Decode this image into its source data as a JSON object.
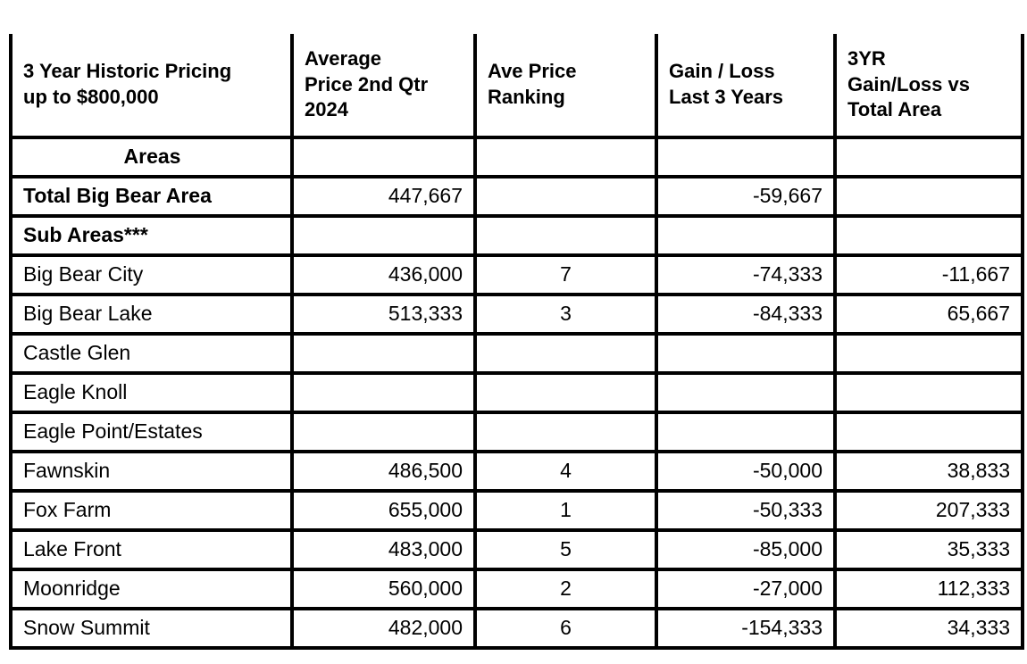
{
  "chart_data": {
    "type": "table",
    "title": "3 Year Historic Pricing up to $800,000",
    "columns": [
      "3 Year Historic Pricing up to $800,000",
      "Average Price 2nd Qtr 2024",
      "Ave Price Ranking",
      "Gain / Loss Last 3 Years",
      "3YR Gain/Loss vs Total Area"
    ],
    "header_lines": [
      [
        "3 Year Historic Pricing",
        "up to $800,000"
      ],
      [
        "Average",
        "Price 2nd Qtr",
        "2024"
      ],
      [
        "Ave Price",
        "Ranking"
      ],
      [
        "Gain / Loss",
        "Last 3 Years"
      ],
      [
        "3YR",
        "Gain/Loss vs",
        "Total Area"
      ]
    ],
    "rows": [
      {
        "cells": [
          "Areas",
          "",
          "",
          "",
          ""
        ]
      },
      {
        "cells": [
          "Total Big Bear Area",
          "447,667",
          "",
          "-59,667",
          ""
        ]
      },
      {
        "cells": [
          "Sub Areas***",
          "",
          "",
          "",
          ""
        ]
      },
      {
        "cells": [
          "Big Bear City",
          "436,000",
          "7",
          "-74,333",
          "-11,667"
        ]
      },
      {
        "cells": [
          "Big Bear Lake",
          "513,333",
          "3",
          "-84,333",
          "65,667"
        ]
      },
      {
        "cells": [
          "Castle Glen",
          "",
          "",
          "",
          ""
        ]
      },
      {
        "cells": [
          "Eagle Knoll",
          "",
          "",
          "",
          ""
        ]
      },
      {
        "cells": [
          "Eagle Point/Estates",
          "",
          "",
          "",
          ""
        ]
      },
      {
        "cells": [
          "Fawnskin",
          "486,500",
          "4",
          "-50,000",
          "38,833"
        ]
      },
      {
        "cells": [
          "Fox Farm",
          "655,000",
          "1",
          "-50,333",
          "207,333"
        ]
      },
      {
        "cells": [
          "Lake Front",
          "483,000",
          "5",
          "-85,000",
          "35,333"
        ]
      },
      {
        "cells": [
          "Moonridge",
          "560,000",
          "2",
          "-27,000",
          "112,333"
        ]
      },
      {
        "cells": [
          "Snow Summit",
          "482,000",
          "6",
          "-154,333",
          "34,333"
        ]
      }
    ],
    "colors": {
      "text": "#000000",
      "border": "#000000",
      "background": "#ffffff"
    }
  }
}
